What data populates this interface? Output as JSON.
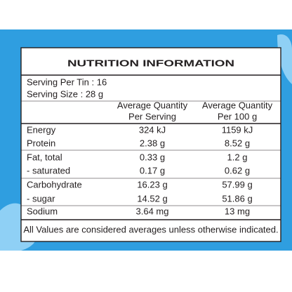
{
  "header": {
    "title": "NUTRITION INFORMATION"
  },
  "serving": {
    "per_tin": "Serving Per Tin : 16",
    "size": "Serving Size : 28 g"
  },
  "table": {
    "columns": [
      [
        "Average Quantity",
        "Per Serving"
      ],
      [
        "Average Quantity",
        "Per 100 g"
      ]
    ],
    "rows": [
      [
        "Energy",
        "324 kJ",
        "1159 kJ"
      ],
      [
        "Protein",
        "2.38 g",
        "8.52 g"
      ],
      [
        "Fat, total",
        "0.33 g",
        "1.2 g"
      ],
      [
        "- saturated",
        "0.17 g",
        "0.62 g"
      ],
      [
        "Carbohydrate",
        "16.23 g",
        "57.99 g"
      ],
      [
        "- sugar",
        "14.52 g",
        "51.86 g"
      ],
      [
        "Sodium",
        "3.64 mg",
        "13 mg"
      ]
    ]
  },
  "footer": "All Values are considered averages unless otherwise indicated."
}
